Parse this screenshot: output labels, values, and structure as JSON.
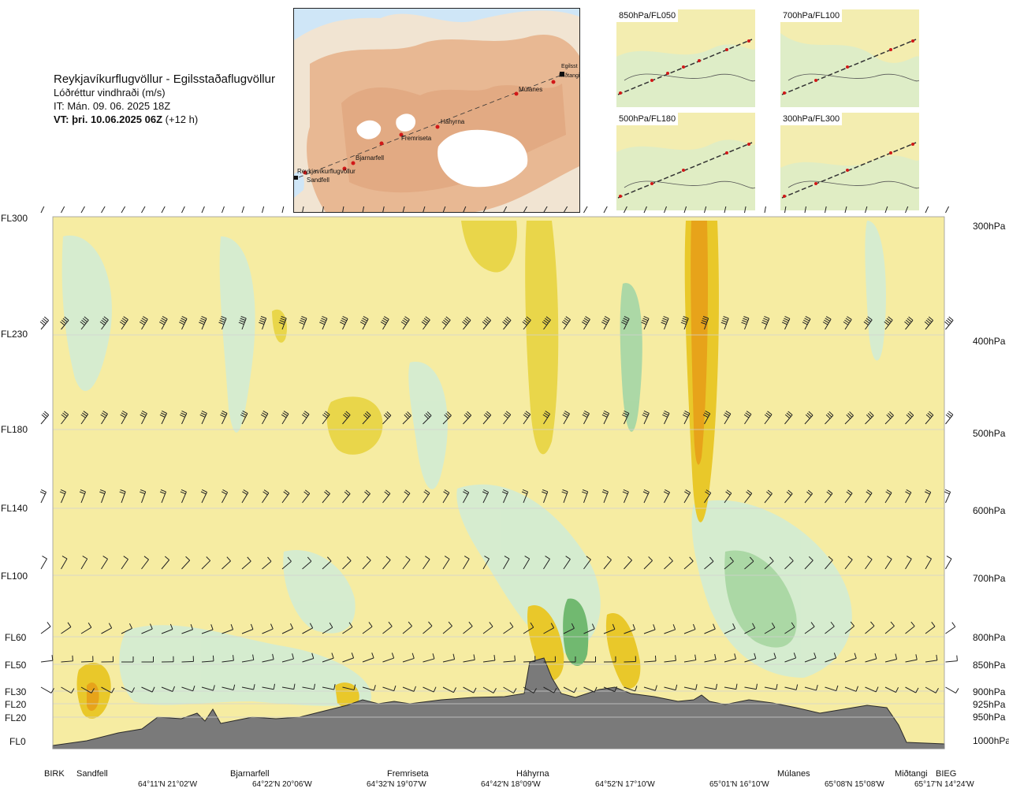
{
  "title": {
    "line1": "Reykjavíkurflugvöllur - Egilsstaðaflugvöllur",
    "line2": "Lóðréttur vindhraði (m/s)",
    "line3": "IT: Mán. 09. 06. 2025 18Z",
    "line4_bold": "VT: þri. 10.06.2025 06Z",
    "line4_suffix": " (+12 h)"
  },
  "map": {
    "places": [
      "Reykjavíkurflugvöllur",
      "Sandfell",
      "Bjarnarfell",
      "Fremriseta",
      "Háhyrna",
      "Múlanes",
      "Egilsst",
      "Miðtangi"
    ]
  },
  "thumbnails": [
    {
      "label": "850hPa/FL050"
    },
    {
      "label": "700hPa/FL100"
    },
    {
      "label": "500hPa/FL180"
    },
    {
      "label": "300hPa/FL300"
    }
  ],
  "flight_levels": [
    "FL300",
    "FL230",
    "FL180",
    "FL140",
    "FL100",
    "FL60",
    "FL50",
    "FL30",
    "FL20",
    "FL20",
    "FL0"
  ],
  "pressure_levels": [
    "300hPa",
    "400hPa",
    "500hPa",
    "600hPa",
    "700hPa",
    "800hPa",
    "850hPa",
    "900hPa",
    "925hPa",
    "950hPa",
    "1000hPa"
  ],
  "sites": [
    "BIRK",
    "Sandfell",
    "Bjarnarfell",
    "Fremriseta",
    "Háhyrna",
    "Múlanes",
    "Miðtangi",
    "BIEG"
  ],
  "coords": [
    "64°11'N 21°02'W",
    "64°22'N 20°06'W",
    "64°32'N 19°07'W",
    "64°42'N 18°09'W",
    "64°52'N 17°10'W",
    "65°01'N 16°10'W",
    "65°08'N 15°08'W",
    "65°17'N 14°24'W"
  ],
  "colors": {
    "background_field": "#f6eca2",
    "updraft_strong": "#e9c82a",
    "updraft_core": "#e7a31a",
    "downdraft_light": "#d4ecd2",
    "downdraft_mid": "#a8d7a6",
    "downdraft_strong": "#6ab76e",
    "terrain": "#7a7a7a",
    "route_marker": "#d11818"
  }
}
